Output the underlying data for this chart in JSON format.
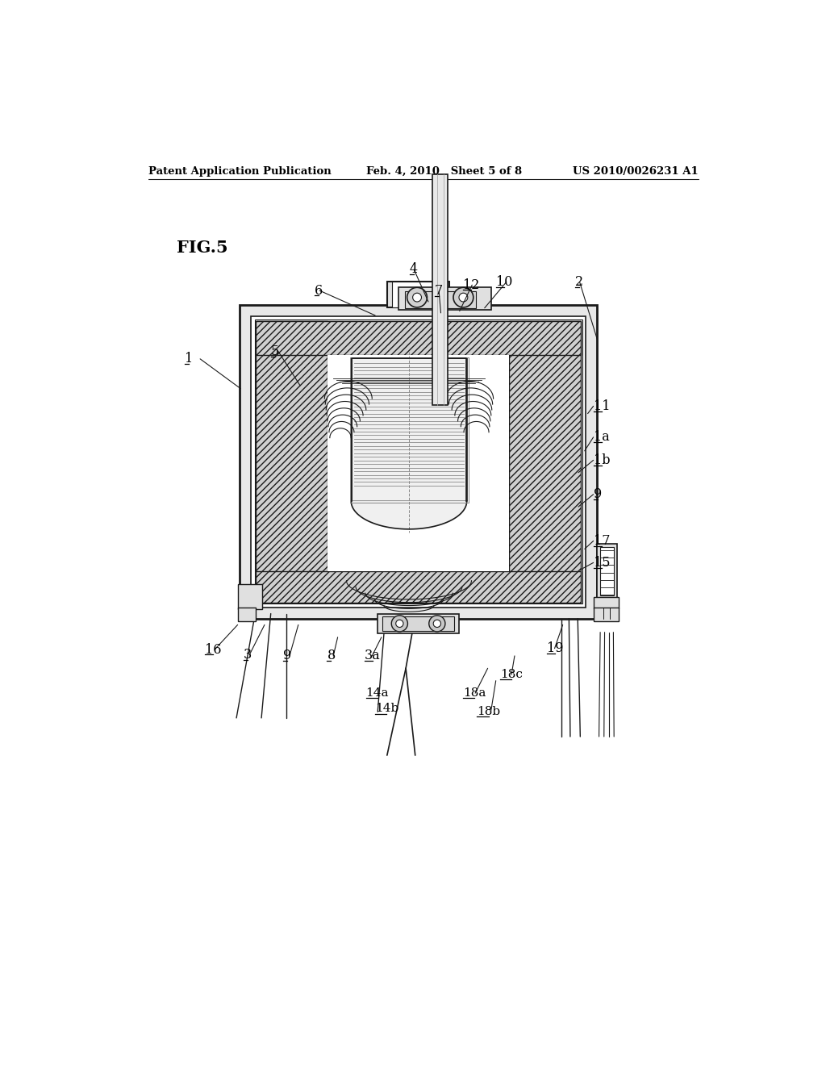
{
  "background_color": "#ffffff",
  "header_left": "Patent Application Publication",
  "header_center": "Feb. 4, 2010   Sheet 5 of 8",
  "header_right": "US 2010/0026231 A1",
  "fig_label": "FIG.5",
  "line_color": "#1a1a1a"
}
